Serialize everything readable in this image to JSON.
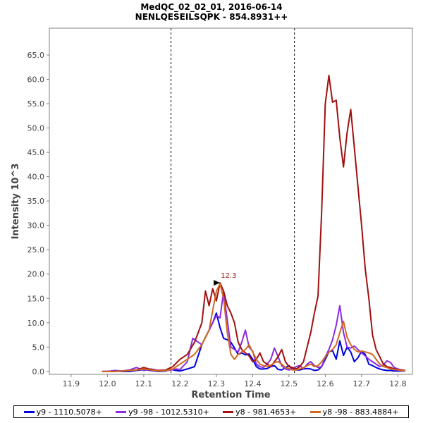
{
  "title_line1": "MedQC_02_02_01, 2016-06-14",
  "title_line2": "NENLQESEILSQPK - 854.8931++",
  "chart_data": {
    "type": "line",
    "xlabel": "Retention Time",
    "ylabel": "Intensity 10^3",
    "xlim": [
      11.84,
      12.84
    ],
    "ylim": [
      -0.6,
      70.5
    ],
    "x_ticks": [
      "11.9",
      "12.0",
      "12.1",
      "12.2",
      "12.3",
      "12.4",
      "12.5",
      "12.6",
      "12.7",
      "12.8"
    ],
    "y_ticks": [
      "0.0",
      "5.0",
      "10.0",
      "15.0",
      "20.0",
      "25.0",
      "30.0",
      "35.0",
      "40.0",
      "45.0",
      "50.0",
      "55.0",
      "60.0",
      "65.0"
    ],
    "boundaries": [
      12.175,
      12.515
    ],
    "peak_annotation": {
      "label": "12.3",
      "x": 12.312,
      "y": 18.2
    },
    "series": [
      {
        "name": "y9 - 1110.5078+",
        "color": "#0000e0",
        "x": [
          11.985,
          12.0,
          12.02,
          12.04,
          12.06,
          12.08,
          12.1,
          12.12,
          12.14,
          12.16,
          12.175,
          12.19,
          12.2,
          12.22,
          12.24,
          12.26,
          12.27,
          12.28,
          12.29,
          12.3,
          12.31,
          12.32,
          12.33,
          12.34,
          12.35,
          12.36,
          12.37,
          12.38,
          12.39,
          12.4,
          12.41,
          12.42,
          12.43,
          12.44,
          12.45,
          12.46,
          12.47,
          12.48,
          12.49,
          12.5,
          12.51,
          12.52,
          12.53,
          12.54,
          12.55,
          12.56,
          12.57,
          12.58,
          12.59,
          12.6,
          12.61,
          12.62,
          12.63,
          12.64,
          12.65,
          12.66,
          12.67,
          12.68,
          12.69,
          12.7,
          12.71,
          12.72,
          12.73,
          12.74,
          12.75,
          12.76,
          12.77,
          12.78,
          12.79,
          12.8,
          12.81,
          12.82
        ],
        "y": [
          0,
          0,
          0.1,
          0,
          0,
          0.2,
          0.4,
          0.2,
          0,
          0.1,
          0.4,
          0.2,
          0.1,
          0.5,
          1.0,
          5.5,
          7.0,
          8.5,
          10.0,
          12.0,
          9.0,
          6.8,
          6.5,
          6.0,
          4.8,
          3.5,
          3.8,
          3.4,
          3.6,
          2.5,
          1.0,
          0.5,
          0.5,
          0.6,
          1.0,
          1.2,
          0.4,
          0.3,
          0.8,
          1.2,
          0.5,
          0.3,
          0.3,
          0.5,
          0.6,
          0.5,
          0.2,
          0.3,
          1.0,
          2.5,
          4.0,
          4.3,
          2.5,
          6.3,
          3.3,
          5.0,
          4.0,
          2.0,
          2.8,
          4.2,
          3.5,
          1.5,
          1.2,
          0.8,
          0.5,
          0.3,
          0.2,
          0.2,
          0.1,
          0.1,
          0.1,
          0.1
        ]
      },
      {
        "name": "y9 -98 - 1012.5310+",
        "color": "#8a2be2",
        "x": [
          11.985,
          12.0,
          12.02,
          12.04,
          12.06,
          12.08,
          12.1,
          12.12,
          12.14,
          12.16,
          12.175,
          12.19,
          12.2,
          12.22,
          12.235,
          12.25,
          12.26,
          12.27,
          12.28,
          12.29,
          12.3,
          12.31,
          12.32,
          12.33,
          12.34,
          12.35,
          12.36,
          12.37,
          12.38,
          12.39,
          12.4,
          12.41,
          12.42,
          12.43,
          12.44,
          12.45,
          12.46,
          12.47,
          12.48,
          12.49,
          12.5,
          12.51,
          12.52,
          12.53,
          12.54,
          12.55,
          12.56,
          12.57,
          12.58,
          12.59,
          12.6,
          12.61,
          12.62,
          12.63,
          12.64,
          12.65,
          12.66,
          12.67,
          12.68,
          12.69,
          12.7,
          12.71,
          12.72,
          12.73,
          12.74,
          12.75,
          12.76,
          12.77,
          12.78,
          12.79,
          12.8,
          12.81,
          12.82
        ],
        "y": [
          0,
          0,
          0.2,
          0.1,
          0.3,
          0.8,
          0.2,
          0.5,
          0.2,
          0.2,
          0.3,
          0.5,
          0.4,
          2.0,
          6.8,
          6.0,
          5.5,
          7.0,
          8.5,
          10.0,
          11.5,
          11.0,
          16.5,
          10.5,
          5.0,
          4.5,
          4.0,
          6.0,
          8.5,
          5.0,
          4.2,
          1.5,
          1.0,
          0.8,
          1.5,
          2.5,
          4.8,
          3.0,
          1.2,
          0.5,
          0.3,
          0.5,
          1.0,
          1.2,
          0.5,
          1.5,
          2.0,
          1.2,
          0.8,
          1.0,
          3.0,
          4.5,
          6.5,
          9.5,
          13.5,
          8.0,
          5.0,
          4.8,
          5.2,
          4.5,
          3.8,
          3.2,
          2.5,
          2.0,
          1.5,
          1.0,
          1.3,
          2.2,
          1.8,
          0.8,
          0.5,
          0.3,
          0.2
        ]
      },
      {
        "name": "y8 - 981.4653+",
        "color": "#a01010",
        "x": [
          11.985,
          12.0,
          12.02,
          12.04,
          12.06,
          12.08,
          12.1,
          12.12,
          12.14,
          12.16,
          12.18,
          12.2,
          12.22,
          12.24,
          12.25,
          12.26,
          12.27,
          12.28,
          12.29,
          12.3,
          12.31,
          12.32,
          12.33,
          12.34,
          12.35,
          12.36,
          12.37,
          12.38,
          12.39,
          12.4,
          12.41,
          12.42,
          12.43,
          12.44,
          12.45,
          12.46,
          12.47,
          12.48,
          12.49,
          12.5,
          12.51,
          12.52,
          12.53,
          12.54,
          12.55,
          12.56,
          12.57,
          12.58,
          12.59,
          12.6,
          12.61,
          12.62,
          12.63,
          12.64,
          12.65,
          12.66,
          12.67,
          12.68,
          12.69,
          12.7,
          12.71,
          12.72,
          12.73,
          12.74,
          12.75,
          12.76,
          12.77,
          12.78,
          12.79,
          12.8,
          12.81,
          12.82
        ],
        "y": [
          0,
          0,
          0,
          0.1,
          0.2,
          0.3,
          0.8,
          0.4,
          0.2,
          0.3,
          1.0,
          2.5,
          3.5,
          6.0,
          8.0,
          10.0,
          16.5,
          13.5,
          17.0,
          14.5,
          18.2,
          16.5,
          13.5,
          12.0,
          10.0,
          6.0,
          4.5,
          3.8,
          3.2,
          2.0,
          2.5,
          3.8,
          2.0,
          1.5,
          1.0,
          2.0,
          3.0,
          4.5,
          2.0,
          1.0,
          0.8,
          0.5,
          1.0,
          2.0,
          5.0,
          8.0,
          12.0,
          15.5,
          33.0,
          55.0,
          60.8,
          55.3,
          55.7,
          48.0,
          42.0,
          49.0,
          53.8,
          46.0,
          38.0,
          30.0,
          21.0,
          15.0,
          7.5,
          4.5,
          3.0,
          1.5,
          1.0,
          0.8,
          0.5,
          0.4,
          0.3,
          0.2
        ]
      },
      {
        "name": "y8 -98 - 883.4884+",
        "color": "#d2691e",
        "x": [
          11.985,
          12.0,
          12.02,
          12.04,
          12.06,
          12.08,
          12.1,
          12.12,
          12.14,
          12.16,
          12.18,
          12.2,
          12.22,
          12.24,
          12.26,
          12.27,
          12.28,
          12.29,
          12.3,
          12.31,
          12.32,
          12.33,
          12.34,
          12.35,
          12.36,
          12.37,
          12.38,
          12.39,
          12.4,
          12.41,
          12.42,
          12.43,
          12.44,
          12.45,
          12.46,
          12.47,
          12.48,
          12.49,
          12.5,
          12.51,
          12.52,
          12.53,
          12.54,
          12.55,
          12.56,
          12.57,
          12.58,
          12.59,
          12.6,
          12.61,
          12.62,
          12.63,
          12.64,
          12.65,
          12.66,
          12.67,
          12.68,
          12.69,
          12.7,
          12.71,
          12.72,
          12.73,
          12.74,
          12.75,
          12.76,
          12.77,
          12.78,
          12.79,
          12.8,
          12.81,
          12.82
        ],
        "y": [
          0,
          0,
          0,
          0.1,
          0.2,
          0.3,
          0.5,
          0.3,
          0.1,
          0.2,
          0.5,
          1.5,
          2.5,
          3.5,
          5.5,
          7.0,
          8.5,
          12.5,
          16.5,
          18.0,
          15.0,
          8.0,
          3.5,
          2.5,
          3.5,
          4.0,
          4.5,
          5.5,
          4.0,
          2.5,
          1.5,
          1.2,
          1.0,
          1.3,
          1.8,
          2.0,
          1.5,
          0.8,
          0.6,
          0.3,
          0.3,
          0.5,
          0.8,
          1.2,
          1.5,
          1.0,
          1.2,
          2.0,
          3.0,
          4.0,
          4.5,
          5.5,
          8.0,
          10.3,
          7.0,
          5.5,
          4.5,
          4.0,
          4.2,
          4.0,
          3.8,
          3.5,
          2.5,
          1.5,
          1.0,
          0.8,
          0.5,
          0.4,
          0.3,
          0.2,
          0.1
        ]
      }
    ]
  }
}
